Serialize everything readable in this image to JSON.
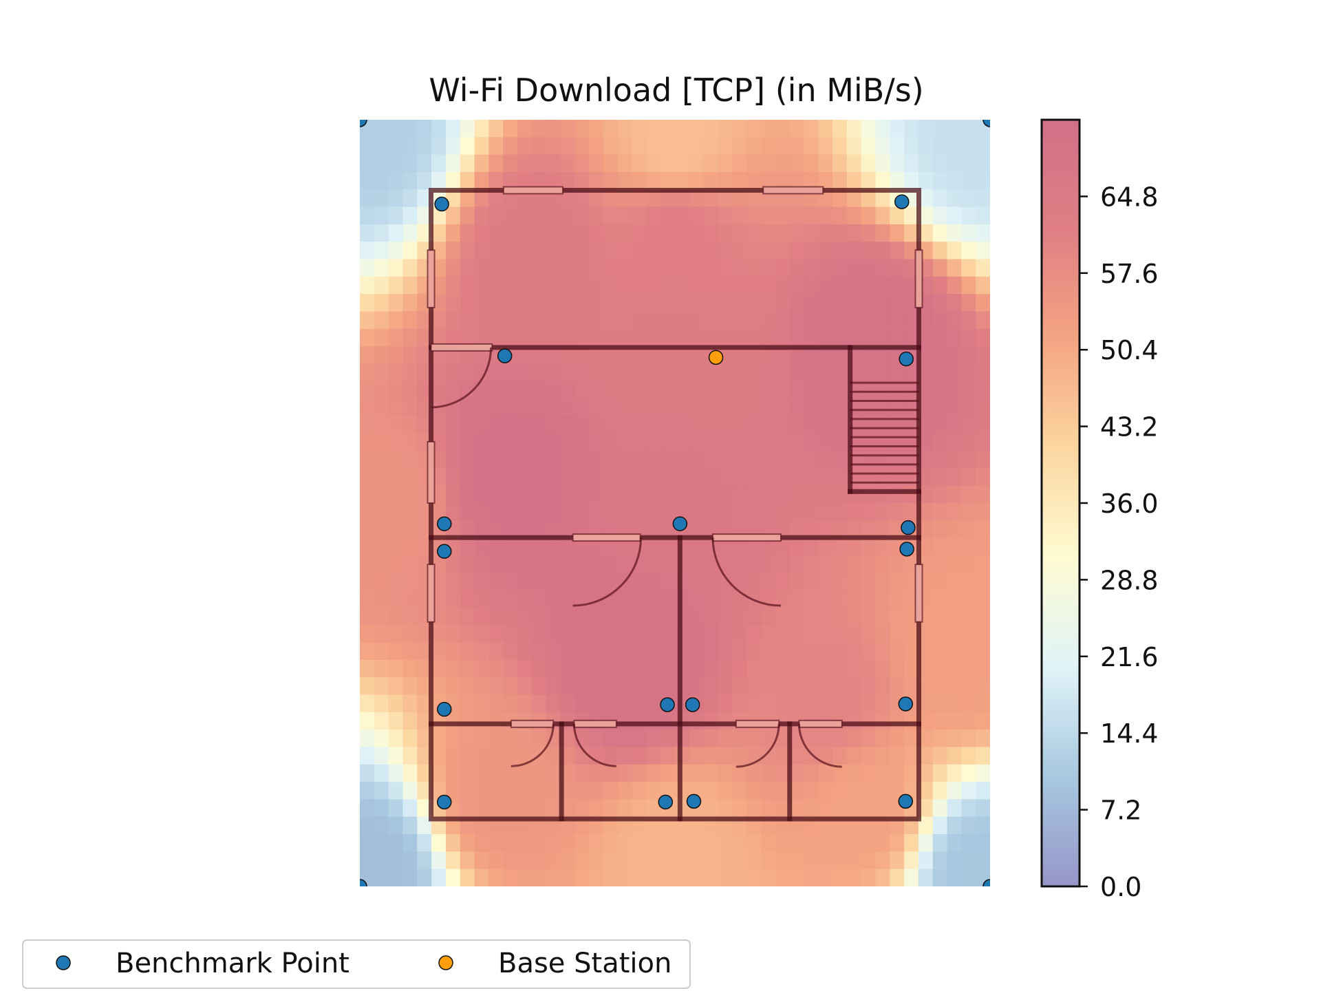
{
  "chart_data": {
    "type": "heatmap",
    "title": "Wi-Fi Download [TCP] (in MiB/s)",
    "xlabel": "",
    "ylabel": "",
    "colorbar": {
      "min": 0.0,
      "max": 72.0,
      "ticks": [
        "0.0",
        "7.2",
        "14.4",
        "21.6",
        "28.8",
        "36.0",
        "43.2",
        "50.4",
        "57.6",
        "64.8"
      ],
      "tick_values": [
        0.0,
        7.2,
        14.4,
        21.6,
        28.8,
        36.0,
        43.2,
        50.4,
        57.6,
        64.8
      ],
      "colormap": "RdYlBu_r",
      "colors": [
        "#9696c8",
        "#a7c8e0",
        "#e0f3f8",
        "#fefbd3",
        "#fcd6a0",
        "#f4a482",
        "#e07e84",
        "#d27088"
      ]
    },
    "grid": false,
    "axes_visible": false,
    "legend": {
      "placement": "bottom-left",
      "entries": [
        {
          "label": "Benchmark Point",
          "color": "#1f77b4"
        },
        {
          "label": "Base Station",
          "color": "#ff9f0e"
        }
      ]
    },
    "base_station": {
      "x": 0.565,
      "y": 0.69
    },
    "benchmark_points": [
      {
        "x": 0.0,
        "y": 1.0
      },
      {
        "x": 1.0,
        "y": 1.0
      },
      {
        "x": 0.0,
        "y": 0.0
      },
      {
        "x": 1.0,
        "y": 0.0
      },
      {
        "x": 0.13,
        "y": 0.89
      },
      {
        "x": 0.86,
        "y": 0.893
      },
      {
        "x": 0.23,
        "y": 0.692
      },
      {
        "x": 0.867,
        "y": 0.688
      },
      {
        "x": 0.134,
        "y": 0.473
      },
      {
        "x": 0.508,
        "y": 0.473
      },
      {
        "x": 0.87,
        "y": 0.468
      },
      {
        "x": 0.134,
        "y": 0.437
      },
      {
        "x": 0.868,
        "y": 0.44
      },
      {
        "x": 0.134,
        "y": 0.231
      },
      {
        "x": 0.488,
        "y": 0.237
      },
      {
        "x": 0.528,
        "y": 0.237
      },
      {
        "x": 0.866,
        "y": 0.238
      },
      {
        "x": 0.134,
        "y": 0.11
      },
      {
        "x": 0.485,
        "y": 0.11
      },
      {
        "x": 0.53,
        "y": 0.111
      },
      {
        "x": 0.866,
        "y": 0.111
      }
    ],
    "field_anchors": [
      {
        "x": 0.5,
        "y": 0.5,
        "value": 66
      },
      {
        "x": 0.24,
        "y": 0.54,
        "value": 71
      },
      {
        "x": 0.43,
        "y": 0.29,
        "value": 70
      },
      {
        "x": 0.82,
        "y": 0.7,
        "value": 70
      },
      {
        "x": 0.5,
        "y": 0.85,
        "value": 62
      },
      {
        "x": 0.28,
        "y": 0.82,
        "value": 64
      },
      {
        "x": 0.5,
        "y": 0.7,
        "value": 63
      },
      {
        "x": 0.74,
        "y": 0.24,
        "value": 60
      },
      {
        "x": 0.22,
        "y": 0.12,
        "value": 55
      },
      {
        "x": 0.8,
        "y": 0.1,
        "value": 52
      },
      {
        "x": 0.95,
        "y": 0.3,
        "value": 53
      },
      {
        "x": 0.05,
        "y": 0.5,
        "value": 56
      },
      {
        "x": 0.5,
        "y": 0.04,
        "value": 48
      },
      {
        "x": 0.5,
        "y": 0.97,
        "value": 46
      },
      {
        "x": 0.02,
        "y": 0.98,
        "value": 12
      },
      {
        "x": 0.98,
        "y": 0.98,
        "value": 16
      },
      {
        "x": 0.02,
        "y": 0.02,
        "value": 8
      },
      {
        "x": 0.98,
        "y": 0.02,
        "value": 10
      }
    ]
  },
  "floorplan": {
    "outer_wall": [
      [
        0.113,
        0.908
      ],
      [
        0.887,
        0.908
      ],
      [
        0.887,
        0.088
      ],
      [
        0.113,
        0.088
      ]
    ],
    "walls": [
      [
        [
          0.113,
          0.703
        ],
        [
          0.887,
          0.703
        ]
      ],
      [
        [
          0.113,
          0.455
        ],
        [
          0.887,
          0.455
        ]
      ],
      [
        [
          0.113,
          0.212
        ],
        [
          0.887,
          0.212
        ]
      ],
      [
        [
          0.508,
          0.455
        ],
        [
          0.508,
          0.088
        ]
      ],
      [
        [
          0.32,
          0.212
        ],
        [
          0.32,
          0.088
        ]
      ],
      [
        [
          0.682,
          0.212
        ],
        [
          0.682,
          0.088
        ]
      ],
      [
        [
          0.778,
          0.703
        ],
        [
          0.778,
          0.515
        ]
      ],
      [
        [
          0.778,
          0.515
        ],
        [
          0.887,
          0.515
        ]
      ]
    ],
    "windows": [
      [
        [
          0.228,
          0.908
        ],
        [
          0.322,
          0.908
        ]
      ],
      [
        [
          0.64,
          0.908
        ],
        [
          0.735,
          0.908
        ]
      ],
      [
        [
          0.113,
          0.83
        ],
        [
          0.113,
          0.755
        ]
      ],
      [
        [
          0.887,
          0.83
        ],
        [
          0.887,
          0.755
        ]
      ],
      [
        [
          0.113,
          0.58
        ],
        [
          0.113,
          0.5
        ]
      ],
      [
        [
          0.113,
          0.42
        ],
        [
          0.113,
          0.345
        ]
      ],
      [
        [
          0.887,
          0.42
        ],
        [
          0.887,
          0.345
        ]
      ],
      [
        [
          0.113,
          0.703
        ],
        [
          0.21,
          0.703
        ]
      ],
      [
        [
          0.338,
          0.455
        ],
        [
          0.445,
          0.455
        ]
      ],
      [
        [
          0.56,
          0.455
        ],
        [
          0.668,
          0.455
        ]
      ],
      [
        [
          0.24,
          0.212
        ],
        [
          0.307,
          0.212
        ]
      ],
      [
        [
          0.34,
          0.212
        ],
        [
          0.407,
          0.212
        ]
      ],
      [
        [
          0.597,
          0.212
        ],
        [
          0.665,
          0.212
        ]
      ],
      [
        [
          0.697,
          0.212
        ],
        [
          0.765,
          0.212
        ]
      ]
    ]
  }
}
